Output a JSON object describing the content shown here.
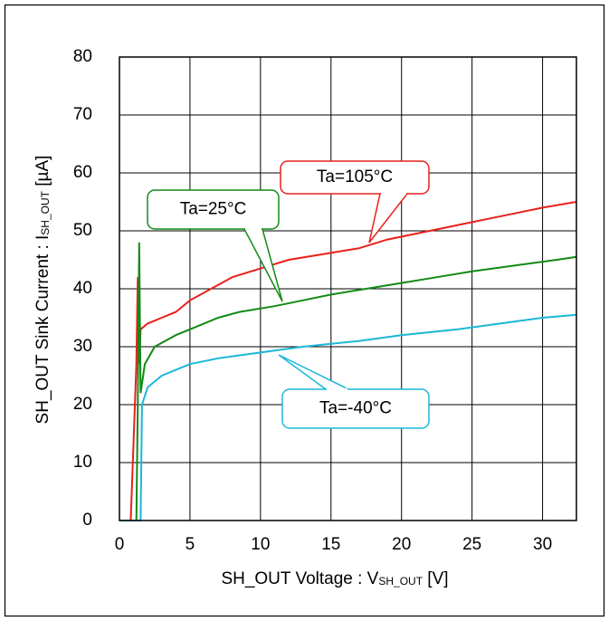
{
  "chart_data": {
    "type": "line",
    "x_label": [
      "SH_OUT Voltage : V",
      "SH_OUT",
      " [V]"
    ],
    "y_label": [
      "SH_OUT Sink Current : I",
      "SH_OUT",
      " [µA]"
    ],
    "xlim": [
      0,
      32.4
    ],
    "ylim": [
      0,
      80
    ],
    "xticks": [
      0,
      5,
      10,
      15,
      20,
      25,
      30
    ],
    "yticks": [
      0,
      10,
      20,
      30,
      40,
      50,
      60,
      70,
      80
    ],
    "grid": true,
    "series": [
      {
        "name": "Ta=105°C",
        "color": "#e8201c",
        "x": [
          0,
          0.8,
          1.2,
          1.3,
          1.4,
          1.5,
          2,
          3,
          4,
          5,
          6.5,
          8,
          10,
          12,
          14.5,
          17,
          19,
          22,
          24,
          26,
          28,
          30,
          32.4
        ],
        "values": [
          0,
          0,
          27,
          42,
          27,
          33,
          34,
          35,
          36,
          38,
          40,
          42,
          43.5,
          45,
          46,
          47,
          48.5,
          50,
          51,
          52,
          53,
          54,
          55
        ]
      },
      {
        "name": "Ta=25°C",
        "color": "#138a16",
        "x": [
          0,
          1.2,
          1.3,
          1.4,
          1.5,
          1.8,
          2.5,
          4,
          5,
          7,
          8.5,
          11,
          13,
          15,
          17.5,
          20,
          22.5,
          25,
          28,
          31,
          32.4
        ],
        "values": [
          0,
          0,
          20,
          48,
          22,
          27,
          30,
          32,
          33,
          35,
          36,
          37,
          38,
          39,
          40,
          41,
          42,
          43,
          44,
          45,
          45.5
        ]
      },
      {
        "name": "Ta=-40°C",
        "color": "#1bb7d8",
        "x": [
          0,
          1.5,
          1.6,
          2,
          3,
          4,
          5,
          7,
          10,
          13,
          17,
          20,
          24,
          27,
          30,
          32.4
        ],
        "values": [
          0,
          0,
          20,
          23,
          25,
          26,
          27,
          28,
          29,
          30,
          31,
          32,
          33,
          34,
          35,
          35.5
        ]
      }
    ]
  }
}
